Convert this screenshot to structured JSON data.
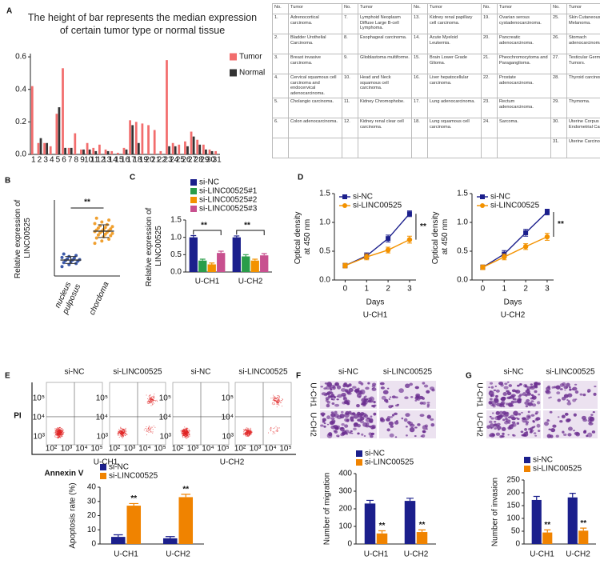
{
  "panels": [
    "A",
    "B",
    "C",
    "D",
    "E",
    "F",
    "G"
  ],
  "table": {
    "header": [
      "No.",
      "Tumor"
    ],
    "groups": [
      [
        [
          "1.",
          "Adrenocortical carcinoma."
        ],
        [
          "2.",
          "Bladder Urothelial Carcinoma."
        ],
        [
          "3.",
          "Breast invasive carcinoma."
        ],
        [
          "4.",
          "Cervical squamous cell carcinoma and endocervical adenocarcinoma."
        ],
        [
          "5.",
          "Cholangio carcinoma."
        ],
        [
          "6.",
          "Colon adenocarcinoma."
        ]
      ],
      [
        [
          "7.",
          "Lymphoid Neoplasm Diffuse Large B-cell Lymphoma."
        ],
        [
          "8.",
          "Esophageal carcinoma."
        ],
        [
          "9.",
          "Glioblastoma multiforme."
        ],
        [
          "10.",
          "Head and Neck squamous cell carcinoma."
        ],
        [
          "11.",
          "Kidney Chromophobe."
        ],
        [
          "12.",
          "Kidney renal clear cell carcinoma."
        ]
      ],
      [
        [
          "13.",
          "Kidney renal papillary cell carcinoma."
        ],
        [
          "14.",
          "Acute Myeloid Leukemia."
        ],
        [
          "15.",
          "Brain Lower Grade Glioma."
        ],
        [
          "16.",
          "Liver hepatocellular carcinoma."
        ],
        [
          "17.",
          "Lung adenocarcinoma."
        ],
        [
          "18.",
          "Lung squamous cell carcinoma."
        ]
      ],
      [
        [
          "19.",
          "Ovarian serous cystadenocarcinoma."
        ],
        [
          "20.",
          "Pancreatic adenocarcinoma."
        ],
        [
          "21.",
          "Pheochromocytoma and Paraganglioma."
        ],
        [
          "22.",
          "Prostate adenocarcinoma."
        ],
        [
          "23.",
          "Rectum adenocarcinoma."
        ],
        [
          "24.",
          "Sarcoma."
        ]
      ],
      [
        [
          "25.",
          "Skin Cutaneous Melanoma."
        ],
        [
          "26.",
          "Stomach adenocarcinoma."
        ],
        [
          "27.",
          "Testicular Germ Cell Tumors."
        ],
        [
          "28.",
          "Thyroid carcinoma."
        ],
        [
          "29.",
          "Thymoma."
        ],
        [
          "30.",
          "Uterine Corpus Endometrial Carcinoma."
        ],
        [
          "31.",
          "Uterine Carcinosarcoma."
        ]
      ]
    ]
  },
  "flow": {
    "titles": [
      "si-NC",
      "si-LINC00525",
      "si-NC",
      "si-LINC00525"
    ],
    "y_label": "PI",
    "x_label": "Annexin V",
    "cells": [
      "U-CH1",
      "U-CH2"
    ],
    "ticks": [
      "10²",
      "10³",
      "10⁴",
      "10⁵"
    ]
  },
  "migration": {
    "columns": [
      "si-NC",
      "si-LINC00525"
    ],
    "rows": [
      "U-CH1",
      "U-CH2"
    ]
  },
  "invasion": {
    "columns": [
      "si-NC",
      "si-LINC00525"
    ],
    "rows": [
      "U-CH1",
      "U-CH2"
    ]
  },
  "chart_data": [
    {
      "type": "bar",
      "title": "The height of bar represents the median expression of certain tumor type or normal tissue",
      "categories": [
        "1",
        "2",
        "3",
        "4",
        "5",
        "6",
        "7",
        "8",
        "9",
        "10",
        "11",
        "12",
        "13",
        "14",
        "15",
        "16",
        "17",
        "18",
        "19",
        "20",
        "21",
        "22",
        "23",
        "24",
        "25",
        "26",
        "27",
        "28",
        "29",
        "30",
        "31"
      ],
      "series": [
        {
          "name": "Tumor",
          "color": "#f26d6d",
          "values": [
            0.42,
            0.07,
            0.07,
            0.05,
            0.25,
            0.53,
            0.04,
            0.13,
            0.03,
            0.07,
            0.04,
            0.06,
            0.03,
            0.02,
            0.01,
            0.04,
            0.21,
            0.2,
            0.19,
            0.18,
            0.15,
            0.02,
            0.58,
            0.07,
            0.06,
            0.08,
            0.14,
            0.09,
            0.06,
            0.03,
            0.02
          ]
        },
        {
          "name": "Normal",
          "color": "#333333",
          "values": [
            null,
            0.1,
            0.07,
            null,
            0.29,
            0.04,
            0.04,
            null,
            0.03,
            0.03,
            0.02,
            null,
            0.02,
            null,
            null,
            0.03,
            0.18,
            0.07,
            null,
            null,
            null,
            null,
            0.05,
            0.05,
            null,
            0.05,
            0.11,
            0.06,
            0.03,
            0.02,
            null
          ]
        }
      ],
      "ylim": [
        0,
        0.62
      ],
      "yticks": [
        {
          "value": 0,
          "label": "0.0"
        },
        0.2,
        0.4,
        0.6
      ],
      "legend": "right"
    },
    {
      "type": "strip",
      "categories": [
        "nucleus pulposus",
        "chordoma"
      ],
      "points": [
        [
          0.62,
          0.75,
          0.82,
          0.88,
          0.92,
          0.98,
          1.02,
          1.05,
          1.08,
          1.12,
          1.18,
          1.22,
          1.28,
          1.35,
          1.45
        ],
        [
          2.15,
          2.3,
          2.42,
          2.5,
          2.58,
          2.65,
          2.7,
          2.75,
          2.8,
          2.85,
          2.88,
          2.92,
          2.95,
          2.98,
          3.02,
          3.05,
          3.1,
          3.15,
          3.2,
          3.25,
          3.3,
          3.38,
          3.45,
          3.55,
          3.68,
          3.8
        ]
      ],
      "mean": [
        1.05,
        2.95
      ],
      "sd": [
        0.23,
        0.42
      ],
      "colors": [
        "#3d5aa9",
        "#f0a030"
      ],
      "ylabel": "Relative expression of LINC00525",
      "ylim": [
        0,
        5
      ],
      "annotations": [
        "**"
      ]
    },
    {
      "type": "bar",
      "categories": [
        "U-CH1",
        "U-CH2"
      ],
      "series": [
        {
          "name": "si-NC",
          "color": "#1b1f8c",
          "values": [
            1.0,
            1.0
          ],
          "errors": [
            0.05,
            0.04
          ]
        },
        {
          "name": "si-LINC00525#1",
          "color": "#2a9d4a",
          "values": [
            0.33,
            0.45
          ],
          "errors": [
            0.04,
            0.05
          ]
        },
        {
          "name": "si-LINC00525#2",
          "color": "#f39200",
          "values": [
            0.22,
            0.33
          ],
          "errors": [
            0.04,
            0.04
          ]
        },
        {
          "name": "si-LINC00525#3",
          "color": "#c8508f",
          "values": [
            0.55,
            0.48
          ],
          "errors": [
            0.05,
            0.05
          ]
        }
      ],
      "ylabel": "Relative expression of LINC00525",
      "ylim": [
        0,
        1.5
      ],
      "yticks": [
        {
          "value": 0,
          "label": "0.0"
        },
        0.5,
        {
          "value": 1,
          "label": "1.0"
        },
        1.5
      ],
      "legend": "top",
      "annotations": [
        "**",
        "**"
      ]
    },
    {
      "type": "line",
      "x": [
        0,
        1,
        2,
        3
      ],
      "xlim": [
        -0.5,
        3.3
      ],
      "xticks": [
        0,
        1,
        2,
        3
      ],
      "xlabel": "Days",
      "subtitle": "U-CH1",
      "ylabel": "Optical density at 450 nm",
      "ylim": [
        0,
        1.5
      ],
      "yticks": [
        {
          "value": 0,
          "label": "0.0"
        },
        0.5,
        {
          "value": 1,
          "label": "1.0"
        },
        1.5
      ],
      "series": [
        {
          "name": "si-NC",
          "color": "#1b1f8c",
          "marker": "square",
          "values": [
            0.25,
            0.42,
            0.72,
            1.15
          ],
          "errors": [
            0.04,
            0.05,
            0.06,
            0.05
          ]
        },
        {
          "name": "si-LINC00525",
          "color": "#f39200",
          "marker": "circle",
          "values": [
            0.25,
            0.4,
            0.52,
            0.7
          ],
          "errors": [
            0.04,
            0.05,
            0.05,
            0.06
          ]
        }
      ],
      "legend": "top-left",
      "annotations": [
        "**"
      ]
    },
    {
      "type": "line",
      "x": [
        0,
        1,
        2,
        3
      ],
      "xlim": [
        -0.5,
        3.3
      ],
      "xticks": [
        0,
        1,
        2,
        3
      ],
      "xlabel": "Days",
      "subtitle": "U-CH2",
      "ylabel": "Optical density at 450 nm",
      "ylim": [
        0,
        1.5
      ],
      "yticks": [
        {
          "value": 0,
          "label": "0.0"
        },
        0.5,
        {
          "value": 1,
          "label": "1.0"
        },
        1.5
      ],
      "series": [
        {
          "name": "si-NC",
          "color": "#1b1f8c",
          "marker": "square",
          "values": [
            0.22,
            0.45,
            0.82,
            1.18
          ],
          "errors": [
            0.04,
            0.06,
            0.06,
            0.05
          ]
        },
        {
          "name": "si-LINC00525",
          "color": "#f39200",
          "marker": "circle",
          "values": [
            0.22,
            0.4,
            0.58,
            0.75
          ],
          "errors": [
            0.04,
            0.05,
            0.05,
            0.06
          ]
        }
      ],
      "legend": "top-left",
      "annotations": [
        "**"
      ]
    },
    {
      "type": "bar",
      "categories": [
        "U-CH1",
        "U-CH2"
      ],
      "series": [
        {
          "name": "si-NC",
          "color": "#1b1f8c",
          "values": [
            5,
            4
          ],
          "errors": [
            1.5,
            1.2
          ]
        },
        {
          "name": "si-LINC00525",
          "color": "#f08300",
          "values": [
            27,
            33
          ],
          "errors": [
            1.5,
            2
          ]
        }
      ],
      "ylabel": "Apoptosis rate (%)",
      "ylim": [
        0,
        40
      ],
      "yticks": [
        0,
        10,
        20,
        30,
        40
      ],
      "legend": "top",
      "annotations": [
        "**",
        "**"
      ]
    },
    {
      "type": "bar",
      "categories": [
        "U-CH1",
        "U-CH2"
      ],
      "series": [
        {
          "name": "si-NC",
          "color": "#1b1f8c",
          "values": [
            230,
            245
          ],
          "errors": [
            18,
            15
          ]
        },
        {
          "name": "si-LINC00525",
          "color": "#f08300",
          "values": [
            60,
            68
          ],
          "errors": [
            15,
            12
          ]
        }
      ],
      "ylabel": "Number of migration",
      "ylim": [
        0,
        400
      ],
      "yticks": [
        0,
        100,
        200,
        300,
        400
      ],
      "legend": "top",
      "annotations": [
        "**",
        "**"
      ]
    },
    {
      "type": "bar",
      "categories": [
        "U-CH1",
        "U-CH2"
      ],
      "series": [
        {
          "name": "si-NC",
          "color": "#1b1f8c",
          "values": [
            172,
            182
          ],
          "errors": [
            14,
            16
          ]
        },
        {
          "name": "si-LINC00525",
          "color": "#f08300",
          "values": [
            45,
            52
          ],
          "errors": [
            10,
            10
          ]
        }
      ],
      "ylabel": "Number of invasion",
      "ylim": [
        0,
        250
      ],
      "yticks": [
        0,
        50,
        100,
        150,
        200,
        250
      ],
      "legend": "top",
      "annotations": [
        "**",
        "**"
      ]
    }
  ]
}
